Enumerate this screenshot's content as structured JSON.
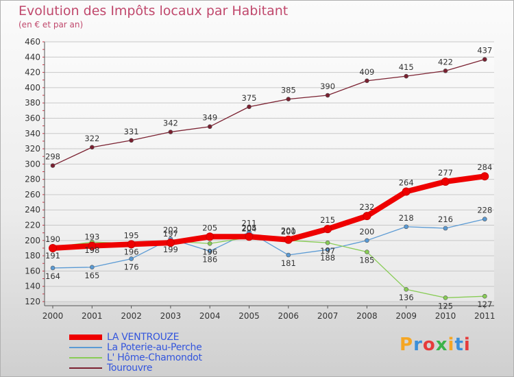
{
  "title": "Evolution des Impôts locaux par Habitant",
  "subtitle": "(en € et par an)",
  "logo": {
    "text": "Proxiti",
    "colors": [
      "#f5a623",
      "#3b8fd9",
      "#e63b3b",
      "#3bb34a",
      "#f5a623",
      "#3b8fd9",
      "#e63b3b"
    ]
  },
  "chart_data": {
    "type": "line",
    "title": "Evolution des Impôts locaux par Habitant",
    "subtitle": "(en € et par an)",
    "xlabel": "",
    "ylabel": "",
    "ylim": [
      120,
      460
    ],
    "yticks": [
      120,
      140,
      160,
      180,
      200,
      220,
      240,
      260,
      280,
      300,
      320,
      340,
      360,
      380,
      400,
      420,
      440,
      460
    ],
    "x": [
      "2000",
      "2001",
      "2002",
      "2003",
      "2004",
      "2005",
      "2006",
      "2007",
      "2008",
      "2009",
      "2010",
      "2011"
    ],
    "grid": "horizontal",
    "legend_position": "bottom-left",
    "series": [
      {
        "name": "Tourouvre",
        "color": "#7a2030",
        "values": [
          298,
          322,
          331,
          342,
          349,
          375,
          385,
          390,
          409,
          415,
          422,
          437
        ],
        "emphasis": false
      },
      {
        "name": "La Poterie-au-Perche",
        "color": "#5a9ad4",
        "values": [
          164,
          165,
          176,
          202,
          186,
          211,
          181,
          188,
          200,
          218,
          216,
          228
        ],
        "emphasis": false
      },
      {
        "name": "L' Hôme-Chamondot",
        "color": "#88cc55",
        "values": [
          191,
          198,
          196,
          199,
          196,
          204,
          200,
          197,
          185,
          136,
          125,
          127
        ],
        "emphasis": false
      },
      {
        "name": "LA VENTROUZE",
        "color": "#ee0000",
        "values": [
          190,
          193,
          195,
          197,
          205,
          205,
          201,
          215,
          232,
          264,
          277,
          284
        ],
        "emphasis": true
      }
    ],
    "legend_order": [
      "LA VENTROUZE",
      "La Poterie-au-Perche",
      "L' Hôme-Chamondot",
      "Tourouvre"
    ]
  }
}
